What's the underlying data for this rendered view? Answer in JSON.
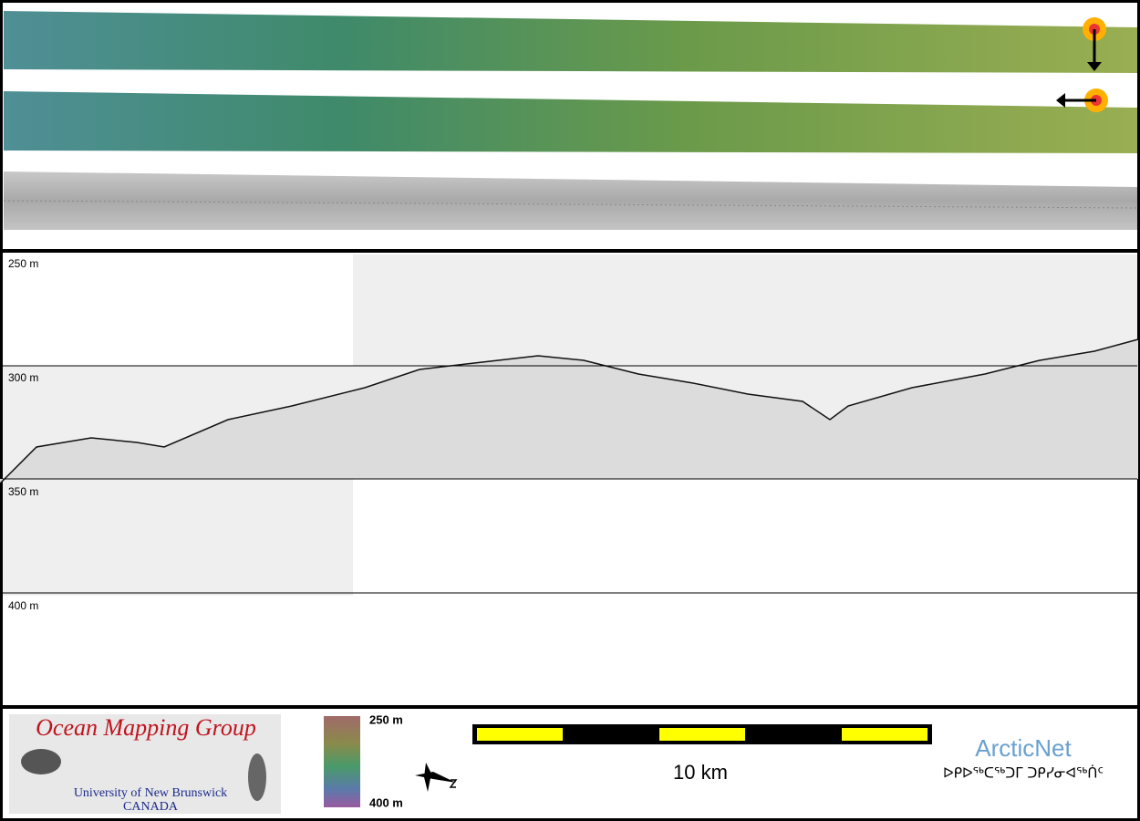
{
  "profile": {
    "depth_labels": [
      "250 m",
      "300 m",
      "350 m",
      "400 m"
    ]
  },
  "logo": {
    "title": "Ocean Mapping Group",
    "line1": "University of New Brunswick",
    "line2": "CANADA"
  },
  "color_scale": {
    "top": "250 m",
    "bottom": "400 m"
  },
  "scale_bar": {
    "label": "10 km"
  },
  "partner": {
    "name": "ArcticNet",
    "syllabics": "ᐅᑭᐅᖅᑕᖅᑐᒥ ᑐᑭᓯᓂᐊᖅᑏᑦ"
  }
}
